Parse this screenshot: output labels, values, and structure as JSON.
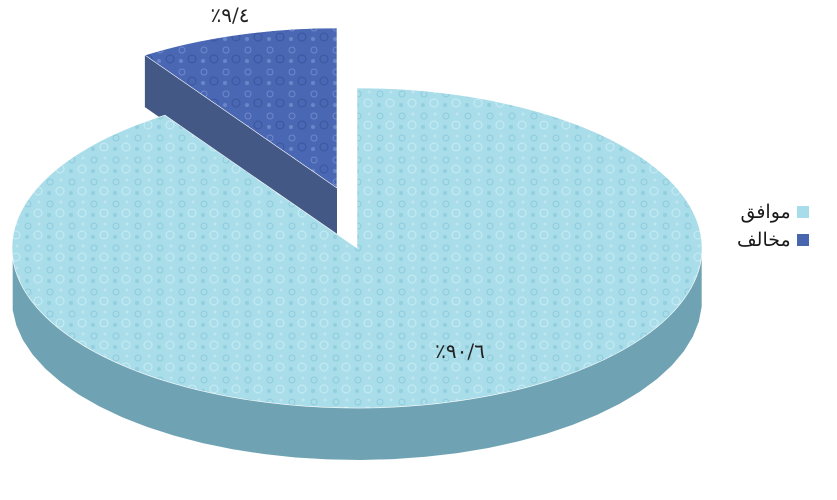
{
  "chart_data": {
    "type": "pie",
    "title": "",
    "categories": [
      "موافق",
      "مخالف"
    ],
    "values": [
      90.6,
      9.4
    ],
    "data_labels": [
      "٪٩٠/٦",
      "٪٩/٤"
    ],
    "colors": [
      "#a7dcea",
      "#4a65b0"
    ],
    "exploded": [
      "مخالف"
    ],
    "style": "3d",
    "legend_position": "right"
  }
}
